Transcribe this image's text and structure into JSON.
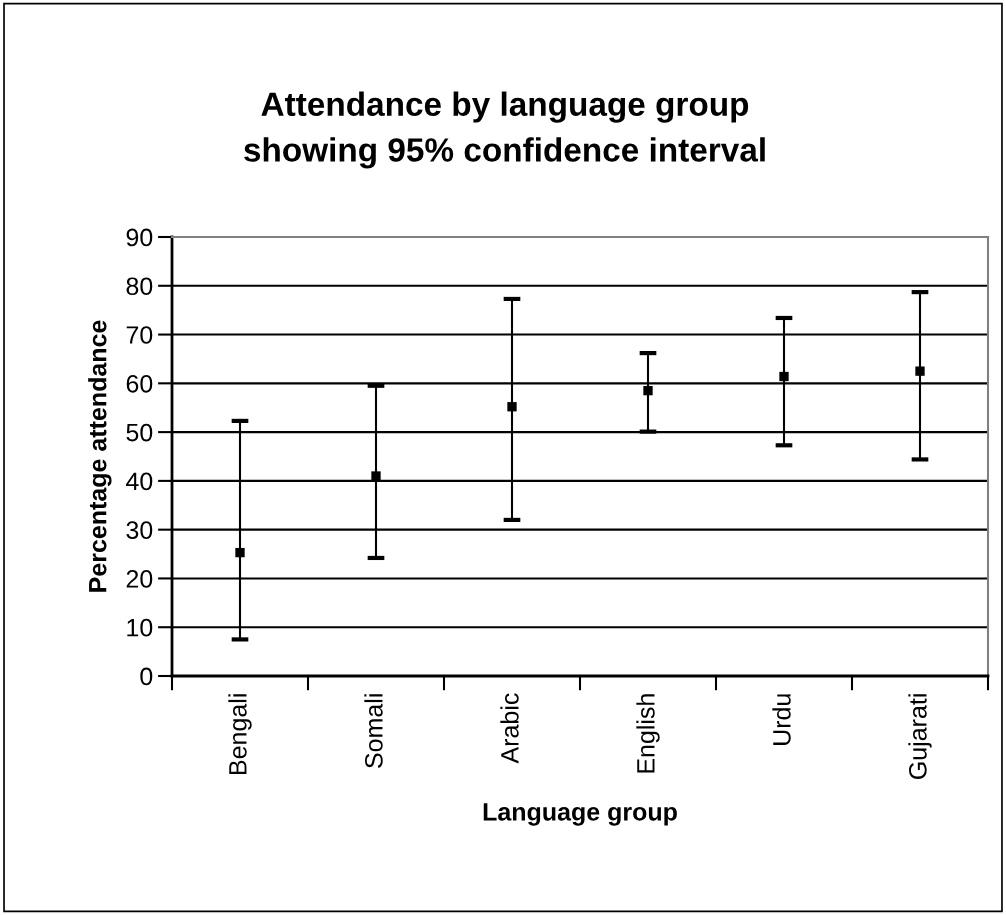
{
  "chart_data": {
    "type": "scatter",
    "title": "Attendance by language group\nshowing 95% confidence interval",
    "xlabel": "Language group",
    "ylabel": "Percentage attendance",
    "categories": [
      "Bengali",
      "Somali",
      "Arabic",
      "English",
      "Urdu",
      "Gujarati"
    ],
    "series": [
      {
        "color": "#000000",
        "values": [
          25.3,
          41.0,
          55.2,
          58.5,
          61.4,
          62.5
        ],
        "errors": [
          [
            7.5,
            52.3
          ],
          [
            24.2,
            59.5
          ],
          [
            32.0,
            77.3
          ],
          [
            50.1,
            66.2
          ],
          [
            47.3,
            73.4
          ],
          [
            44.4,
            78.7
          ]
        ]
      }
    ],
    "ylim": [
      0,
      90
    ],
    "yticks": [
      0,
      10,
      20,
      30,
      40,
      50,
      60,
      70,
      80,
      90
    ],
    "grid": "y",
    "marker": "square"
  }
}
